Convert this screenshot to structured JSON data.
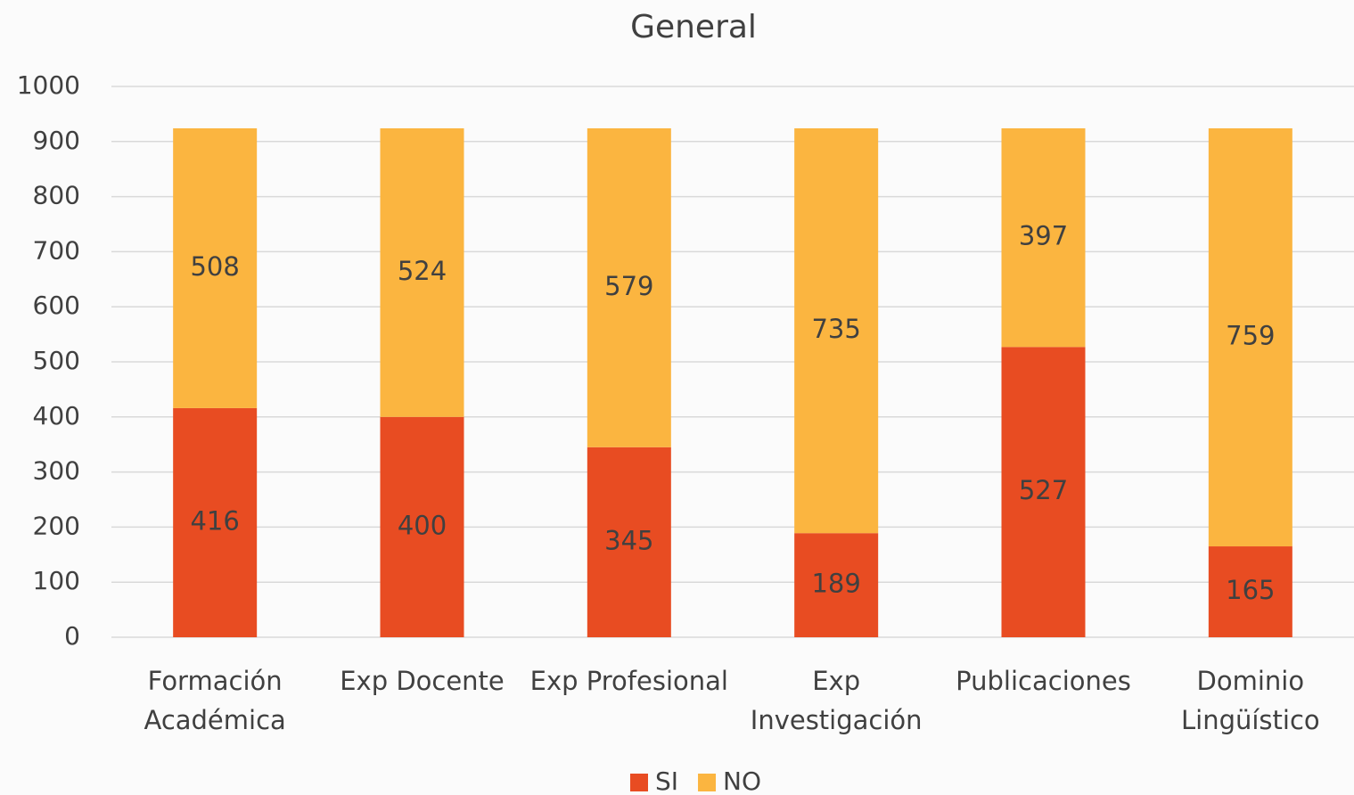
{
  "chart_data": {
    "type": "stacked_bar",
    "title": "General",
    "categories": [
      "Formación Académica",
      "Exp Docente",
      "Exp Profesional",
      "Exp Investigación",
      "Publicaciones",
      "Dominio Lingüístico"
    ],
    "series": [
      {
        "name": "SI",
        "color": "#e84c22",
        "values": [
          416,
          400,
          345,
          189,
          527,
          165
        ]
      },
      {
        "name": "NO",
        "color": "#fbb540",
        "values": [
          508,
          524,
          579,
          735,
          397,
          759
        ]
      }
    ],
    "ylim": [
      0,
      1000
    ],
    "yticks": [
      0,
      100,
      200,
      300,
      400,
      500,
      600,
      700,
      800,
      900,
      1000
    ],
    "grid": true,
    "legend": "bottom"
  }
}
